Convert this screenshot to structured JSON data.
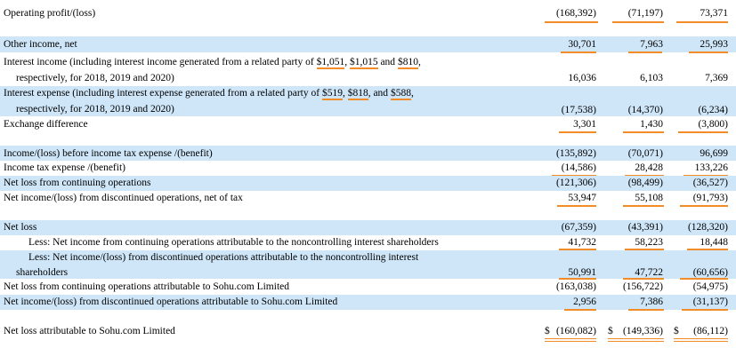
{
  "rows": [
    {
      "label": "Operating profit/(loss)",
      "v1": "(168,392)",
      "v2": "(71,197)",
      "v3": "73,371"
    },
    {
      "label": "Other income, net",
      "v1": "30,701",
      "v2": "7,963",
      "v3": "25,993"
    },
    {
      "label_a": "Interest income (including interest income generated from a related party of ",
      "amt1": "$1,051",
      "sep1": ", ",
      "amt2": "$1,015",
      "sep2": " and ",
      "amt3": "$810",
      "sep3": ",",
      "label_b": "respectively, for 2018, 2019 and 2020)",
      "v1": "16,036",
      "v2": "6,103",
      "v3": "7,369"
    },
    {
      "label_a": "Interest expense (including interest expense generated from a related party of ",
      "amt1": "$519",
      "sep1": ", ",
      "amt2": "$818",
      "sep2": ", and ",
      "amt3": "$588",
      "sep3": ",",
      "label_b": "respectively, for 2018, 2019 and 2020)",
      "v1": "(17,538)",
      "v2": "(14,370)",
      "v3": "(6,234)"
    },
    {
      "label": "Exchange difference",
      "v1": "3,301",
      "v2": "1,430",
      "v3": "(3,800)"
    },
    {
      "label": "Income/(loss) before income tax expense /(benefit)",
      "v1": "(135,892)",
      "v2": "(70,071)",
      "v3": "96,699"
    },
    {
      "label": "Income tax expense /(benefit)",
      "v1": "(14,586)",
      "v2": "28,428",
      "v3": "133,226"
    },
    {
      "label": "Net loss from continuing operations",
      "v1": "(121,306)",
      "v2": "(98,499)",
      "v3": "(36,527)"
    },
    {
      "label": "Net income/(loss) from discontinued operations, net of tax",
      "v1": "53,947",
      "v2": "55,108",
      "v3": "(91,793)"
    },
    {
      "label": "Net loss",
      "v1": "(67,359)",
      "v2": "(43,391)",
      "v3": "(128,320)"
    },
    {
      "label": "Less: Net income from continuing operations attributable to the noncontrolling interest shareholders",
      "v1": "41,732",
      "v2": "58,223",
      "v3": "18,448"
    },
    {
      "label_a": "Less: Net income/(loss) from discontinued operations attributable to the noncontrolling interest",
      "label_b": "shareholders",
      "v1": "50,991",
      "v2": "47,722",
      "v3": "(60,656)"
    },
    {
      "label": "Net loss from continuing operations attributable to Sohu.com Limited",
      "v1": "(163,038)",
      "v2": "(156,722)",
      "v3": "(54,975)"
    },
    {
      "label": "Net income/(loss) from discontinued operations attributable to Sohu.com Limited",
      "v1": "2,956",
      "v2": "7,386",
      "v3": "(31,137)"
    },
    {
      "label": "Net loss attributable to Sohu.com Limited",
      "dollar": "$",
      "v1": "(160,082)",
      "v2": "(149,336)",
      "v3": "(86,112)"
    }
  ],
  "colors": {
    "shade": "#cfe6f8",
    "underline": "#f28c28"
  }
}
